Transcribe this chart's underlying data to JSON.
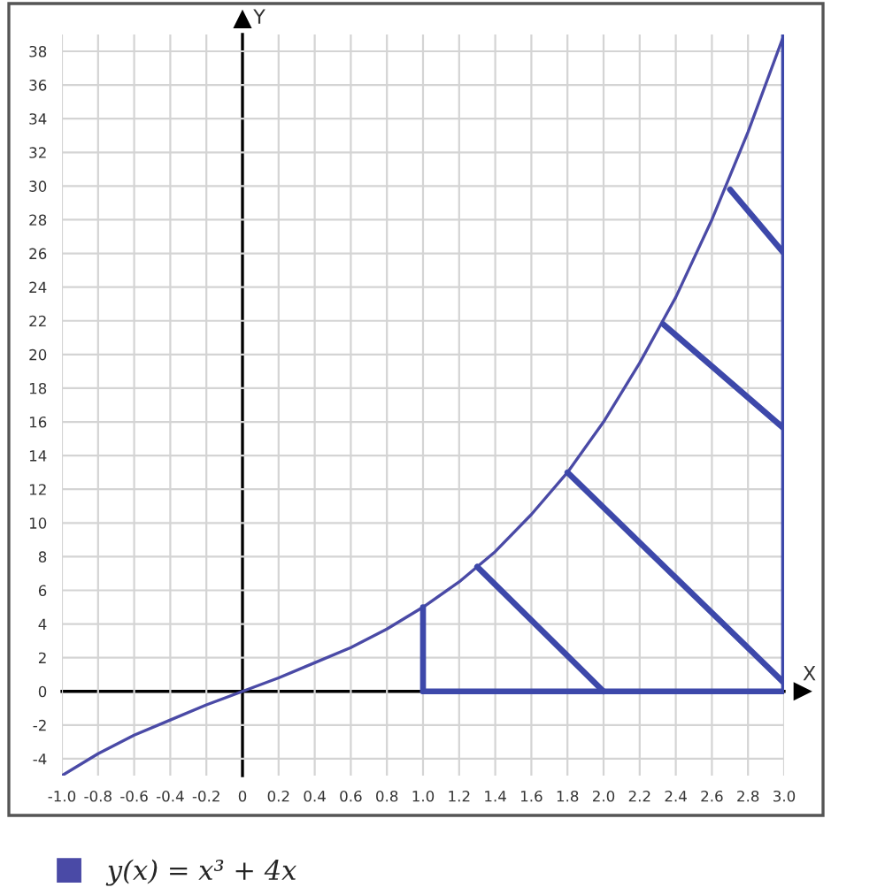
{
  "chart_data": {
    "type": "line",
    "series": [
      {
        "name": "y(x) = x³ + 4x",
        "color": "#4a4aa6",
        "x": [
          -1.0,
          -0.8,
          -0.6,
          -0.4,
          -0.2,
          0,
          0.2,
          0.4,
          0.6,
          0.8,
          1.0,
          1.2,
          1.4,
          1.6,
          1.8,
          2.0,
          2.2,
          2.4,
          2.6,
          2.8,
          3.0
        ],
        "values": [
          -5.0,
          -3.7,
          -2.6,
          -1.7,
          -0.8,
          0,
          0.8,
          1.7,
          2.6,
          3.7,
          5.0,
          6.5,
          8.3,
          10.5,
          13.0,
          16.0,
          19.5,
          23.4,
          28.0,
          33.2,
          39.0
        ]
      },
      {
        "color": "#3d48aa",
        "x": [
          1.0,
          1.0
        ],
        "values": [
          0,
          5.0
        ]
      },
      {
        "color": "#3d48aa",
        "x": [
          1.0,
          3.0
        ],
        "values": [
          0,
          0
        ]
      },
      {
        "color": "#3d48aa",
        "x": [
          3.0,
          3.0
        ],
        "values": [
          0,
          39.0
        ]
      },
      {
        "color": "#3d48aa",
        "x": [
          1.3,
          2.0
        ],
        "values": [
          7.4,
          0
        ]
      },
      {
        "color": "#3d48aa",
        "x": [
          1.8,
          3.0
        ],
        "values": [
          13.0,
          0.5
        ]
      },
      {
        "color": "#3d48aa",
        "x": [
          2.33,
          3.0
        ],
        "values": [
          21.8,
          15.6
        ]
      },
      {
        "color": "#3d48aa",
        "x": [
          2.7,
          3.0
        ],
        "values": [
          29.8,
          26.0
        ]
      }
    ],
    "xlim": [
      -1.0,
      3.0
    ],
    "ylim": [
      -5,
      39
    ],
    "xticks": [
      {
        "value": -1.0,
        "label": "-1.0"
      },
      -0.8,
      -0.6,
      -0.4,
      -0.2,
      {
        "value": 0,
        "label": "0"
      },
      0.2,
      0.4,
      0.6,
      0.8,
      {
        "value": 1.0,
        "label": "1.0"
      },
      1.2,
      1.4,
      1.6,
      1.8,
      {
        "value": 2.0,
        "label": "2.0"
      },
      2.2,
      2.4,
      2.6,
      2.8,
      {
        "value": 3.0,
        "label": "3.0"
      }
    ],
    "yticks": [
      -4,
      -2,
      0,
      2,
      4,
      6,
      8,
      10,
      12,
      14,
      16,
      18,
      20,
      22,
      24,
      26,
      28,
      30,
      32,
      34,
      36,
      38
    ],
    "xlabel": "X",
    "ylabel": "Y",
    "grid": true,
    "legend": "bottom",
    "marker": "none",
    "line_style": "solid"
  }
}
